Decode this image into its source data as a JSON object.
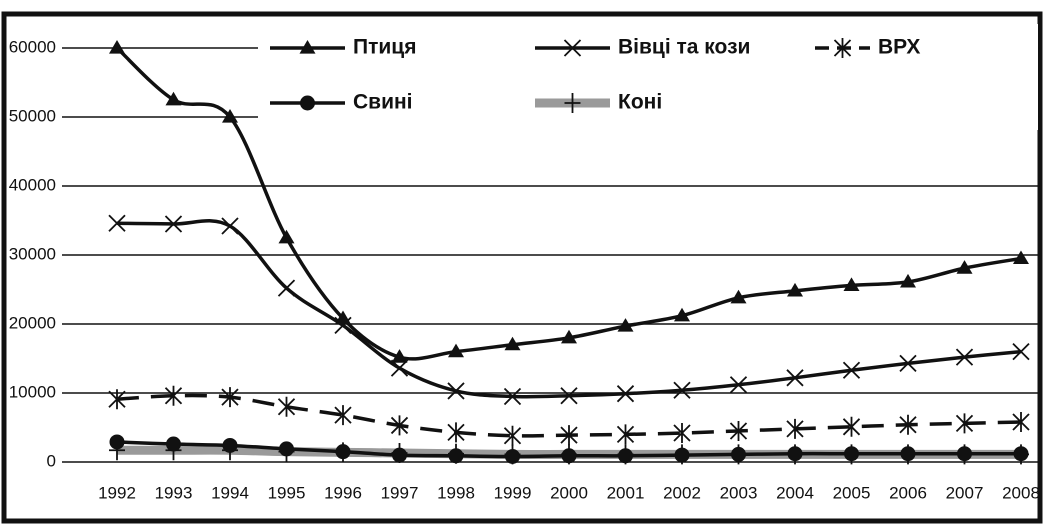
{
  "chart_data": {
    "type": "line",
    "categories": [
      "1992",
      "1993",
      "1994",
      "1995",
      "1996",
      "1997",
      "1998",
      "1999",
      "2000",
      "2001",
      "2002",
      "2003",
      "2004",
      "2005",
      "2006",
      "2007",
      "2008"
    ],
    "series": [
      {
        "name": "Птиця",
        "color": "#111111",
        "marker": "triangle",
        "dash": "solid",
        "values": [
          60000,
          52500,
          50000,
          32500,
          20800,
          15200,
          16000,
          17000,
          18000,
          19700,
          21200,
          23800,
          24800,
          25600,
          26100,
          28100,
          29500
        ]
      },
      {
        "name": "Вівці та кози",
        "color": "#111111",
        "marker": "x",
        "dash": "solid",
        "values": [
          34600,
          34500,
          34200,
          25200,
          19800,
          13600,
          10300,
          9500,
          9600,
          9900,
          10400,
          11200,
          12200,
          13300,
          14300,
          15200,
          16000
        ]
      },
      {
        "name": "ВРХ",
        "color": "#111111",
        "marker": "asterisk",
        "dash": "dashed",
        "values": [
          9100,
          9600,
          9400,
          8000,
          6800,
          5300,
          4300,
          3800,
          3900,
          4000,
          4200,
          4500,
          4800,
          5100,
          5400,
          5600,
          5800
        ]
      },
      {
        "name": "Свині",
        "color": "#111111",
        "marker": "circle",
        "dash": "solid",
        "values": [
          2900,
          2600,
          2400,
          1900,
          1500,
          1000,
          900,
          800,
          900,
          900,
          1000,
          1100,
          1200,
          1200,
          1200,
          1200,
          1200
        ]
      },
      {
        "name": "Коні",
        "color": "#9a9a9a",
        "marker": "plus",
        "dash": "thick",
        "values": [
          1700,
          1700,
          1700,
          1500,
          1400,
          1300,
          1200,
          1100,
          1100,
          1100,
          1100,
          1100,
          1100,
          1100,
          1100,
          1100,
          1100
        ]
      }
    ],
    "ylim": [
      0,
      60000
    ],
    "yticks": [
      0,
      10000,
      20000,
      30000,
      40000,
      50000,
      60000
    ],
    "grid": true
  }
}
